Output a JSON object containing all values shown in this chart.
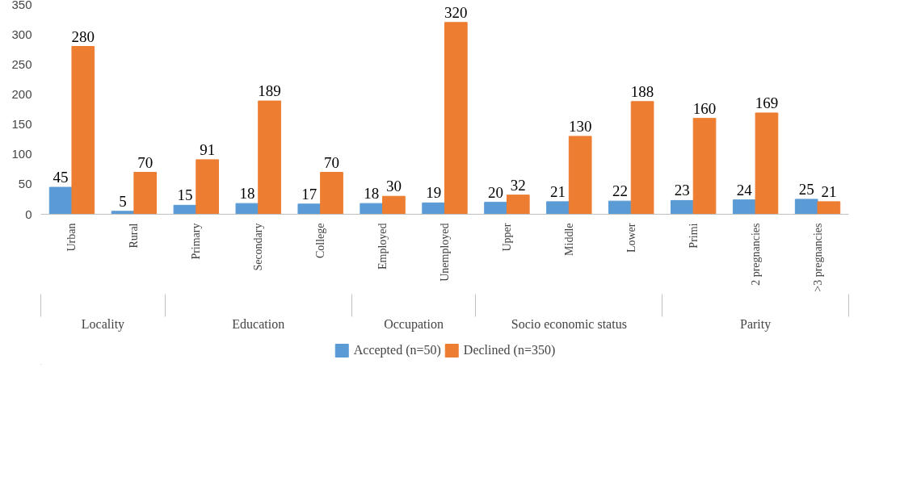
{
  "chart_data": {
    "type": "bar",
    "categories": [
      "Urban",
      "Rural",
      "Primary",
      "Secondary",
      "College",
      "Employed",
      "Unemployed",
      "Upper",
      "Middle",
      "Lower",
      "Primi",
      "2 pregnancies",
      ">3 pregnancies"
    ],
    "series": [
      {
        "name": "Accepted (n=50)",
        "color": "#5b9bd5",
        "values": [
          45,
          5,
          15,
          18,
          17,
          18,
          19,
          20,
          21,
          22,
          23,
          24,
          25
        ]
      },
      {
        "name": "Declined (n=350)",
        "color": "#ed7d31",
        "values": [
          280,
          70,
          91,
          189,
          70,
          30,
          320,
          32,
          130,
          188,
          160,
          169,
          21
        ]
      }
    ],
    "annotations": [
      "Locality",
      "Education",
      "Occupation",
      "Socio economic status",
      "Parity"
    ],
    "ylim": [
      0,
      350
    ],
    "yticks": [
      0,
      50,
      100,
      150,
      200,
      250,
      300,
      350
    ],
    "grid": false,
    "legend": "bottom",
    "data_labels": true
  }
}
